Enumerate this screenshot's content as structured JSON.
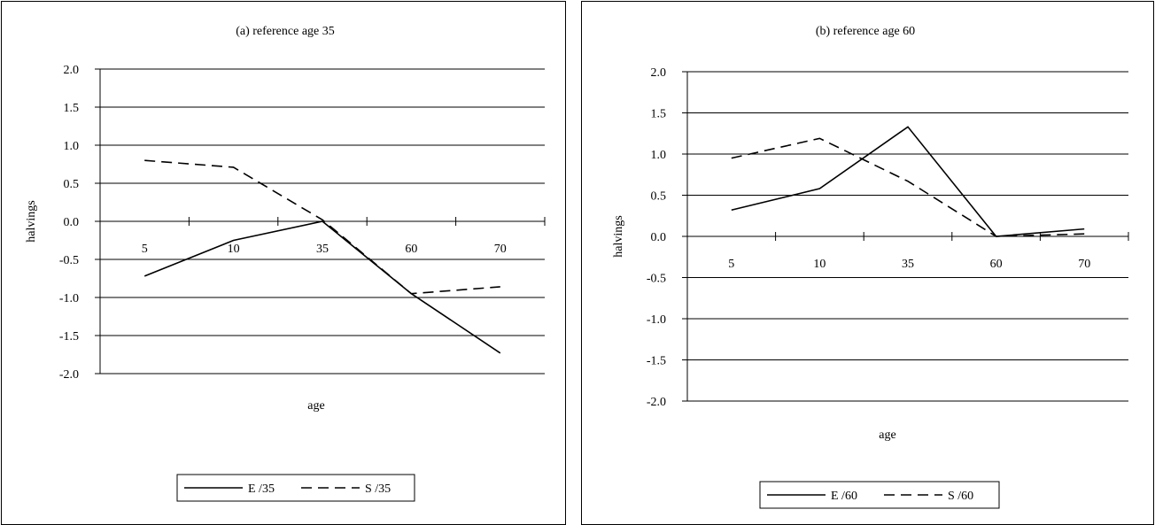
{
  "chart_data": [
    {
      "type": "line",
      "title": "(a) reference age 35",
      "xlabel": "age",
      "ylabel": "halvings",
      "categories": [
        "5",
        "10",
        "35",
        "60",
        "70"
      ],
      "ylim": [
        -2.0,
        2.0
      ],
      "yticks": [
        "2.0",
        "1.5",
        "1.0",
        "0.5",
        "0.0",
        "-0.5",
        "-1.0",
        "-1.5",
        "-2.0"
      ],
      "grid": true,
      "legend": "bottom-center",
      "series": [
        {
          "name": "E /35",
          "style": "solid",
          "values": [
            -0.72,
            -0.25,
            0.0,
            -0.95,
            -1.73
          ]
        },
        {
          "name": "S /35",
          "style": "dashed",
          "values": [
            0.8,
            0.71,
            0.02,
            -0.95,
            -0.86
          ]
        }
      ]
    },
    {
      "type": "line",
      "title": "(b) reference age 60",
      "xlabel": "age",
      "ylabel": "halvings",
      "categories": [
        "5",
        "10",
        "35",
        "60",
        "70"
      ],
      "ylim": [
        -2.0,
        2.0
      ],
      "yticks": [
        "2.0",
        "1.5",
        "1.0",
        "0.5",
        "0.0",
        "-0.5",
        "-1.0",
        "-1.5",
        "-2.0"
      ],
      "grid": true,
      "legend": "bottom-center",
      "series": [
        {
          "name": "E /60",
          "style": "solid",
          "values": [
            0.32,
            0.58,
            1.33,
            0.0,
            0.09
          ]
        },
        {
          "name": "S /60",
          "style": "dashed",
          "values": [
            0.95,
            1.19,
            0.67,
            0.0,
            0.03
          ]
        }
      ]
    }
  ]
}
